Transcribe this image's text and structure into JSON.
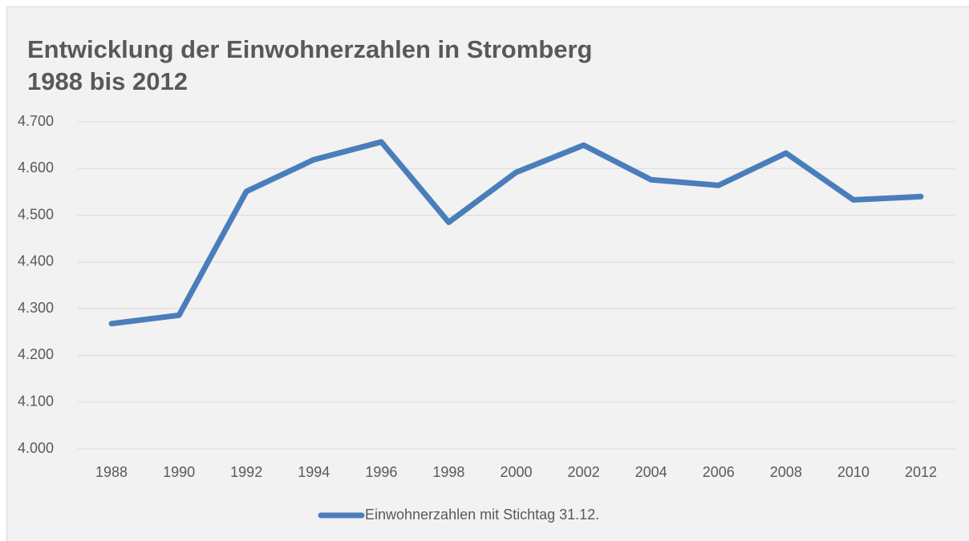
{
  "chart_data": {
    "type": "line",
    "title": "Entwicklung der Einwohnerzahlen in Stromberg",
    "subtitle": "1988 bis 2012",
    "categories": [
      "1988",
      "1990",
      "1992",
      "1994",
      "1996",
      "1998",
      "2000",
      "2002",
      "2004",
      "2006",
      "2008",
      "2010",
      "2012"
    ],
    "series": [
      {
        "name": "Einwohnerzahlen mit Stichtag 31.12.",
        "color": "#4a7ebb",
        "values": [
          4268,
          4286,
          4551,
          4619,
          4657,
          4485,
          4592,
          4650,
          4576,
          4564,
          4633,
          4533,
          4540
        ]
      }
    ],
    "ylim": [
      4000,
      4700
    ],
    "yticks": [
      {
        "value": 4000,
        "label": "4.000"
      },
      {
        "value": 4100,
        "label": "4.100"
      },
      {
        "value": 4200,
        "label": "4.200"
      },
      {
        "value": 4300,
        "label": "4.300"
      },
      {
        "value": 4400,
        "label": "4.400"
      },
      {
        "value": 4500,
        "label": "4.500"
      },
      {
        "value": 4600,
        "label": "4.600"
      },
      {
        "value": 4700,
        "label": "4.700"
      }
    ],
    "grid": true,
    "legend": "bottom"
  }
}
